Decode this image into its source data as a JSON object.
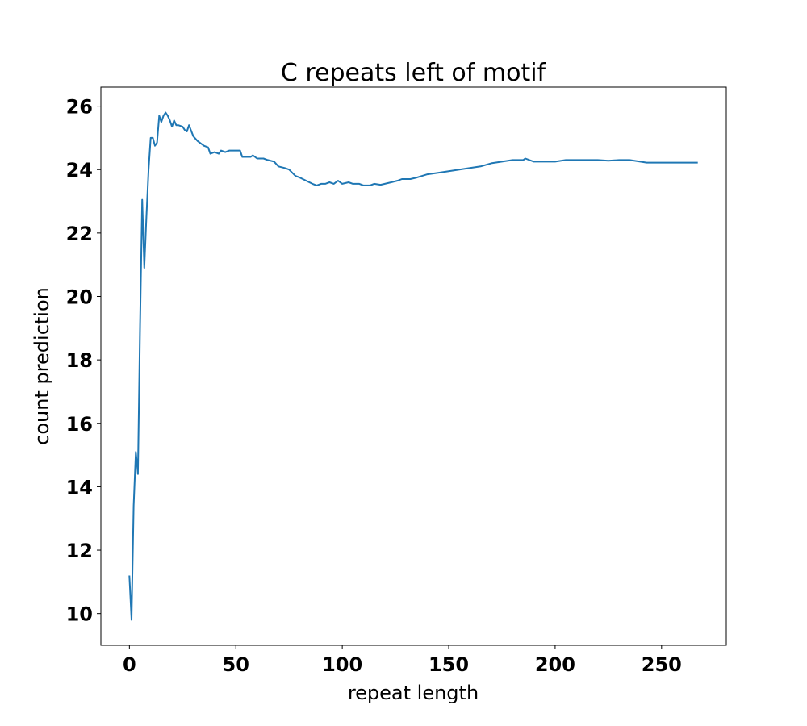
{
  "chart_data": {
    "type": "line",
    "title": "C repeats left of motif",
    "xlabel": "repeat length",
    "ylabel": "count prediction",
    "xlim": [
      -13.4,
      280.4
    ],
    "ylim": [
      9.0,
      26.6
    ],
    "xticks": [
      0,
      50,
      100,
      150,
      200,
      250
    ],
    "yticks": [
      10,
      12,
      14,
      16,
      18,
      20,
      22,
      24,
      26
    ],
    "grid": false,
    "color": "#1f77b4",
    "series": [
      {
        "x": [
          0,
          1,
          2,
          3,
          4,
          5,
          6,
          7,
          8,
          9,
          10,
          11,
          12,
          13,
          14,
          15,
          16,
          17,
          18,
          19,
          20,
          21,
          22,
          23,
          25,
          26,
          27,
          28,
          30,
          32,
          35,
          37,
          38,
          40,
          42,
          43,
          45,
          47,
          50,
          52,
          53,
          57,
          58,
          60,
          63,
          65,
          68,
          70,
          73,
          75,
          78,
          80,
          83,
          86,
          88,
          90,
          92,
          94,
          96,
          98,
          100,
          103,
          105,
          108,
          110,
          113,
          115,
          118,
          120,
          123,
          126,
          128,
          132,
          135,
          140,
          145,
          150,
          155,
          160,
          165,
          170,
          175,
          180,
          185,
          186,
          190,
          195,
          200,
          205,
          210,
          215,
          220,
          225,
          230,
          235,
          240,
          243,
          267
        ],
        "y": [
          11.2,
          9.8,
          13.4,
          15.1,
          14.4,
          19.0,
          23.05,
          20.9,
          22.5,
          24.0,
          25.0,
          25.0,
          24.75,
          24.85,
          25.7,
          25.5,
          25.7,
          25.8,
          25.7,
          25.55,
          25.35,
          25.55,
          25.4,
          25.4,
          25.35,
          25.25,
          25.2,
          25.4,
          25.05,
          24.9,
          24.75,
          24.7,
          24.5,
          24.55,
          24.5,
          24.6,
          24.55,
          24.6,
          24.6,
          24.6,
          24.4,
          24.4,
          24.45,
          24.35,
          24.35,
          24.3,
          24.25,
          24.1,
          24.05,
          24.0,
          23.8,
          23.75,
          23.65,
          23.55,
          23.5,
          23.55,
          23.55,
          23.6,
          23.55,
          23.65,
          23.55,
          23.6,
          23.55,
          23.55,
          23.5,
          23.5,
          23.55,
          23.52,
          23.55,
          23.6,
          23.65,
          23.7,
          23.7,
          23.75,
          23.85,
          23.9,
          23.95,
          24.0,
          24.05,
          24.1,
          24.2,
          24.25,
          24.3,
          24.3,
          24.35,
          24.25,
          24.25,
          24.25,
          24.3,
          24.3,
          24.3,
          24.3,
          24.28,
          24.3,
          24.3,
          24.25,
          24.22,
          24.22
        ]
      }
    ]
  }
}
